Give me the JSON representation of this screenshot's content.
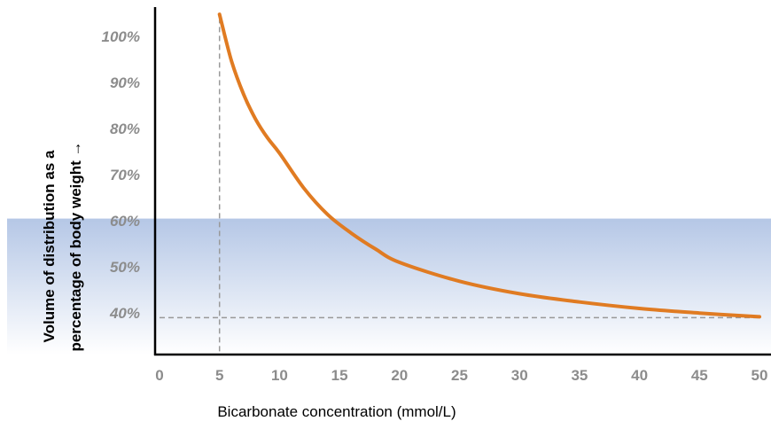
{
  "chart_data": {
    "type": "line",
    "title": "",
    "xlabel": "Bicarbonate concentration (mmol/L)",
    "ylabel_lines": [
      "Volume of distribution as a",
      "percentage of body weight →"
    ],
    "xlim": [
      0,
      50
    ],
    "ylim": [
      31,
      106
    ],
    "x_ticks": [
      0,
      5,
      10,
      15,
      20,
      25,
      30,
      35,
      40,
      45,
      50
    ],
    "y_ticks": [
      40,
      50,
      60,
      70,
      80,
      90,
      100
    ],
    "y_tick_labels": [
      "40%",
      "50%",
      "60%",
      "70%",
      "80%",
      "90%",
      "100%"
    ],
    "grid": false,
    "shaded_band": {
      "y_from": 31,
      "y_to": 60.5,
      "color_top": "#b5c7e6",
      "color_bottom": "#ffffff"
    },
    "reference_lines": [
      {
        "orientation": "vertical",
        "x": 5,
        "y_from": 31,
        "y_to": 104,
        "color": "#999999",
        "style": "dashed"
      },
      {
        "orientation": "horizontal",
        "y": 39,
        "x_from": 0,
        "x_to": 50,
        "color": "#999999",
        "style": "dashed"
      }
    ],
    "series": [
      {
        "color": "#e07b22",
        "x": [
          5,
          6,
          7,
          8,
          9,
          10,
          12,
          14,
          16,
          18,
          20,
          25,
          30,
          35,
          40,
          45,
          50
        ],
        "y": [
          104.8,
          94.7,
          87.5,
          82.1,
          78.0,
          74.7,
          67.2,
          61.4,
          57.3,
          53.9,
          51.0,
          46.9,
          44.2,
          42.4,
          41.0,
          40.0,
          39.2
        ]
      }
    ]
  }
}
